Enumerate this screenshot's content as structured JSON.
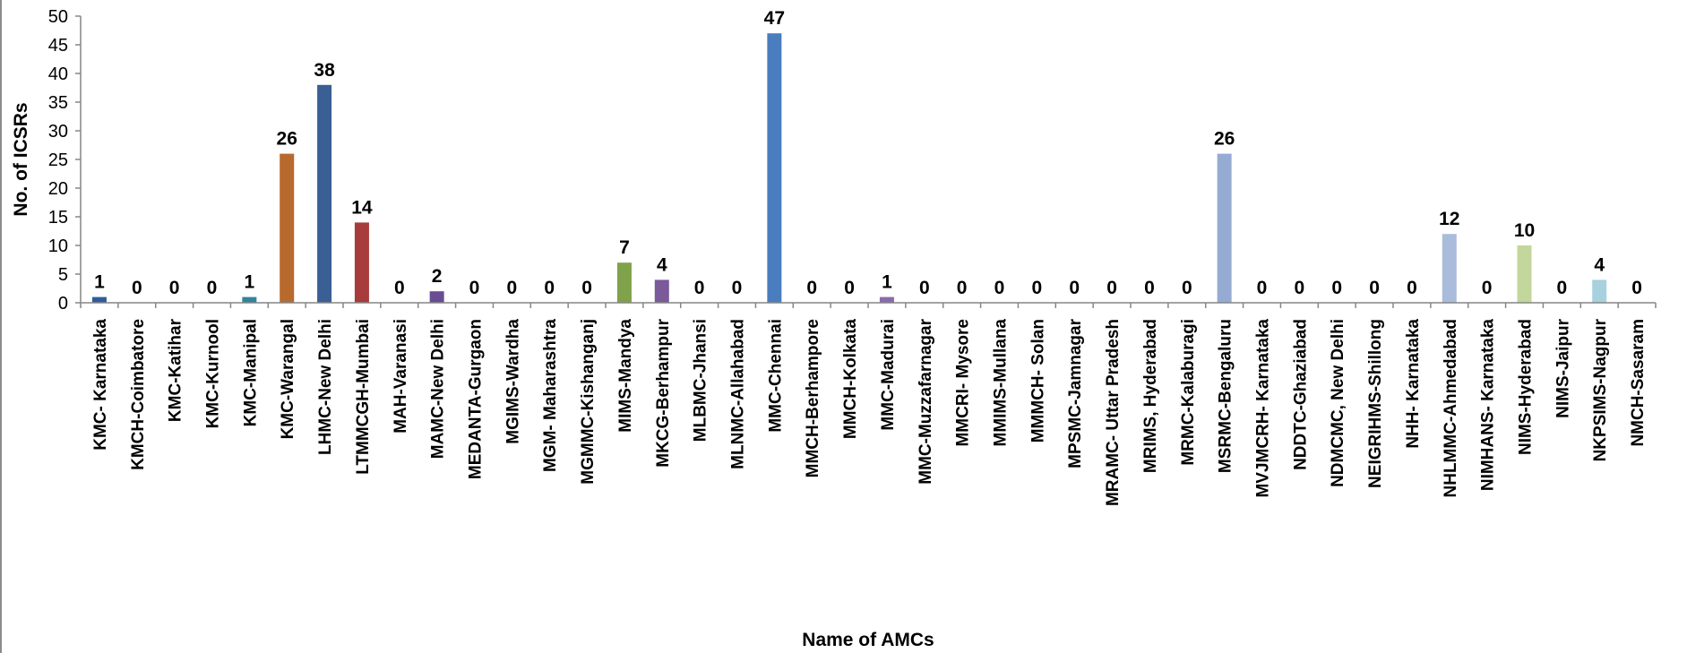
{
  "chart_data": {
    "type": "bar",
    "title": "",
    "xlabel": "Name of AMCs",
    "ylabel": "No. of ICSRs",
    "ylim": [
      0,
      50
    ],
    "yticks": [
      0,
      5,
      10,
      15,
      20,
      25,
      30,
      35,
      40,
      45,
      50
    ],
    "grid": false,
    "legend": "none",
    "categories": [
      "KMC- Karnataka",
      "KMCH-Coimbatore",
      "KMC-Katihar",
      "KMC-Kurnool",
      "KMC-Manipal",
      "KMC-Warangal",
      "LHMC-New Delhi",
      "LTMMCGH-Mumbai",
      "MAH-Varanasi",
      "MAMC-New Delhi",
      "MEDANTA-Gurgaon",
      "MGIMS-Wardha",
      "MGM- Maharashtra",
      "MGMMC-Kishanganj",
      "MIMS-Mandya",
      "MKCG-Berhampur",
      "MLBMC-Jhansi",
      "MLNMC-Allahabad",
      "MMC-Chennai",
      "MMCH-Berhampore",
      "MMCH-Kolkata",
      "MMC-Madurai",
      "MMC-Muzzafarnagar",
      "MMCRI- Mysore",
      "MMIMS-Mullana",
      "MMMCH- Solan",
      "MPSMC-Jamnagar",
      "MRAMC- Uttar Pradesh",
      "MRIMS, Hyderabad",
      "MRMC-Kalaburagi",
      "MSRMC-Bengaluru",
      "MVJMCRH- Karnataka",
      "NDDTC-Ghaziabad",
      "NDMCMC, New Delhi",
      "NEIGRIHMS-Shillong",
      "NHH- Karnataka",
      "NHLMMC-Ahmedabad",
      "NIMHANS- Karnataka",
      "NIMS-Hyderabad",
      "NIMS-Jaipur",
      "NKPSIMS-Nagpur",
      "NMCH-Sasaram"
    ],
    "values": [
      1,
      0,
      0,
      0,
      1,
      26,
      38,
      14,
      0,
      2,
      0,
      0,
      0,
      0,
      7,
      4,
      0,
      0,
      47,
      0,
      0,
      1,
      0,
      0,
      0,
      0,
      0,
      0,
      0,
      0,
      26,
      0,
      0,
      0,
      0,
      0,
      12,
      0,
      10,
      0,
      4,
      0
    ],
    "colors": [
      "#2E5D9A",
      "#4F81BD",
      "#4F81BD",
      "#4F81BD",
      "#31859C",
      "#B8692E",
      "#3A5F95",
      "#A83B3B",
      "#4F81BD",
      "#6A4C93",
      "#4F81BD",
      "#4F81BD",
      "#4F81BD",
      "#4F81BD",
      "#7FA24A",
      "#7A5A99",
      "#4F81BD",
      "#4F81BD",
      "#4A7DBF",
      "#4F81BD",
      "#4F81BD",
      "#8A6AAE",
      "#4F81BD",
      "#4F81BD",
      "#4F81BD",
      "#4F81BD",
      "#4F81BD",
      "#4F81BD",
      "#4F81BD",
      "#4F81BD",
      "#95ABD3",
      "#4F81BD",
      "#4F81BD",
      "#4F81BD",
      "#4F81BD",
      "#4F81BD",
      "#A9BCDB",
      "#4F81BD",
      "#C3D69B",
      "#4F81BD",
      "#A7D1DE",
      "#4F81BD"
    ]
  }
}
